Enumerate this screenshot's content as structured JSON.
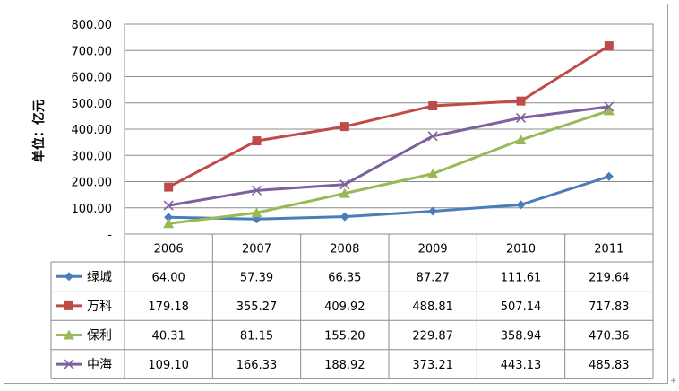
{
  "chart_data": {
    "type": "line",
    "categories": [
      "2006",
      "2007",
      "2008",
      "2009",
      "2010",
      "2011"
    ],
    "ylabel": "单位：亿元",
    "ylim": [
      0,
      800
    ],
    "yticks": [
      {
        "value": 0,
        "label": "-"
      },
      {
        "value": 100,
        "label": "100.00"
      },
      {
        "value": 200,
        "label": "200.00"
      },
      {
        "value": 300,
        "label": "300.00"
      },
      {
        "value": 400,
        "label": "400.00"
      },
      {
        "value": 500,
        "label": "500.00"
      },
      {
        "value": 600,
        "label": "600.00"
      },
      {
        "value": 700,
        "label": "700.00"
      },
      {
        "value": 800,
        "label": "800.00"
      }
    ],
    "grid": true,
    "legend": "data-table",
    "series": [
      {
        "name": "绿城",
        "color": "#4a7ebb",
        "marker": "diamond",
        "values": [
          64.0,
          57.39,
          66.35,
          87.27,
          111.61,
          219.64
        ],
        "labels": [
          "64.00",
          "57.39",
          "66.35",
          "87.27",
          "111.61",
          "219.64"
        ]
      },
      {
        "name": "万科",
        "color": "#be4b48",
        "marker": "square",
        "values": [
          179.18,
          355.27,
          409.92,
          488.81,
          507.14,
          717.83
        ],
        "labels": [
          "179.18",
          "355.27",
          "409.92",
          "488.81",
          "507.14",
          "717.83"
        ]
      },
      {
        "name": "保利",
        "color": "#98b954",
        "marker": "triangle",
        "values": [
          40.31,
          81.15,
          155.2,
          229.87,
          358.94,
          470.36
        ],
        "labels": [
          "40.31",
          "81.15",
          "155.20",
          "229.87",
          "358.94",
          "470.36"
        ]
      },
      {
        "name": "中海",
        "color": "#7d60a0",
        "marker": "x",
        "values": [
          109.1,
          166.33,
          188.92,
          373.21,
          443.13,
          485.83
        ],
        "labels": [
          "109.10",
          "166.33",
          "188.92",
          "373.21",
          "443.13",
          "485.83"
        ]
      }
    ]
  },
  "corner_mark": "+"
}
